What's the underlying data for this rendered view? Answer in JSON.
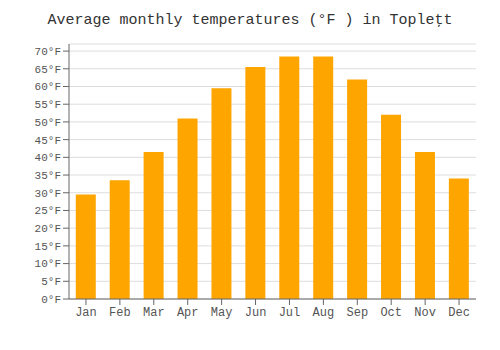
{
  "chart_data": {
    "type": "bar",
    "title": "Average monthly temperatures (°F ) in Topleţt",
    "categories": [
      "Jan",
      "Feb",
      "Mar",
      "Apr",
      "May",
      "Jun",
      "Jul",
      "Aug",
      "Sep",
      "Oct",
      "Nov",
      "Dec"
    ],
    "values": [
      29.5,
      33.5,
      41.5,
      51.0,
      59.5,
      65.5,
      68.5,
      68.5,
      62.0,
      52.0,
      41.5,
      34.0
    ],
    "color": "#FFA500",
    "ylim": [
      0,
      72
    ],
    "yticks": [
      {
        "value": 0,
        "label": "0°F"
      },
      {
        "value": 5,
        "label": "5°F"
      },
      {
        "value": 10,
        "label": "10°F"
      },
      {
        "value": 15,
        "label": "15°F"
      },
      {
        "value": 20,
        "label": "20°F"
      },
      {
        "value": 25,
        "label": "25°F"
      },
      {
        "value": 30,
        "label": "30°F"
      },
      {
        "value": 35,
        "label": "35°F"
      },
      {
        "value": 40,
        "label": "40°F"
      },
      {
        "value": 45,
        "label": "45°F"
      },
      {
        "value": 50,
        "label": "50°F"
      },
      {
        "value": 55,
        "label": "55°F"
      },
      {
        "value": 60,
        "label": "60°F"
      },
      {
        "value": 65,
        "label": "65°F"
      },
      {
        "value": 70,
        "label": "70°F"
      }
    ],
    "grid": true
  }
}
